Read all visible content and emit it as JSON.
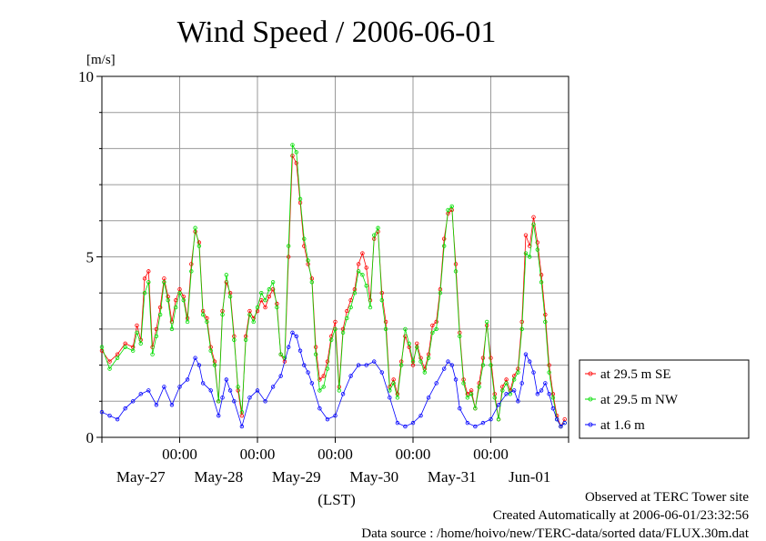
{
  "chart_data": {
    "type": "line",
    "title": "Wind Speed / 2006-06-01",
    "ylabel": "[m/s]",
    "xlabel": "(LST)",
    "ylim": [
      0,
      10
    ],
    "y_ticks": [
      0,
      5,
      10
    ],
    "x_range_days": [
      -6,
      0
    ],
    "x_time_ticks": [
      "00:00",
      "00:00",
      "00:00",
      "00:00",
      "00:00"
    ],
    "x_date_labels": [
      "May-27",
      "May-28",
      "May-29",
      "May-30",
      "May-31",
      "Jun-01"
    ],
    "grid": true,
    "legend_position": "right",
    "series": [
      {
        "name": "at 29.5 m SE",
        "color": "#ff0000",
        "points": [
          [
            -6.0,
            2.4
          ],
          [
            -5.9,
            2.1
          ],
          [
            -5.8,
            2.3
          ],
          [
            -5.7,
            2.6
          ],
          [
            -5.6,
            2.5
          ],
          [
            -5.55,
            3.1
          ],
          [
            -5.5,
            2.7
          ],
          [
            -5.45,
            4.4
          ],
          [
            -5.4,
            4.6
          ],
          [
            -5.35,
            2.5
          ],
          [
            -5.3,
            3.0
          ],
          [
            -5.25,
            3.6
          ],
          [
            -5.2,
            4.4
          ],
          [
            -5.15,
            3.9
          ],
          [
            -5.1,
            3.2
          ],
          [
            -5.05,
            3.8
          ],
          [
            -5.0,
            4.1
          ],
          [
            -4.95,
            3.9
          ],
          [
            -4.9,
            3.3
          ],
          [
            -4.85,
            4.8
          ],
          [
            -4.8,
            5.7
          ],
          [
            -4.75,
            5.4
          ],
          [
            -4.7,
            3.5
          ],
          [
            -4.65,
            3.3
          ],
          [
            -4.6,
            2.5
          ],
          [
            -4.55,
            2.1
          ],
          [
            -4.5,
            1.0
          ],
          [
            -4.45,
            3.5
          ],
          [
            -4.4,
            4.3
          ],
          [
            -4.35,
            4.0
          ],
          [
            -4.3,
            2.8
          ],
          [
            -4.25,
            1.3
          ],
          [
            -4.2,
            0.6
          ],
          [
            -4.15,
            2.8
          ],
          [
            -4.1,
            3.5
          ],
          [
            -4.05,
            3.3
          ],
          [
            -4.0,
            3.5
          ],
          [
            -3.95,
            3.8
          ],
          [
            -3.9,
            3.6
          ],
          [
            -3.85,
            3.9
          ],
          [
            -3.8,
            4.1
          ],
          [
            -3.75,
            3.7
          ],
          [
            -3.7,
            2.3
          ],
          [
            -3.65,
            2.1
          ],
          [
            -3.6,
            5.0
          ],
          [
            -3.55,
            7.8
          ],
          [
            -3.5,
            7.6
          ],
          [
            -3.45,
            6.5
          ],
          [
            -3.4,
            5.3
          ],
          [
            -3.35,
            4.8
          ],
          [
            -3.3,
            4.4
          ],
          [
            -3.25,
            2.5
          ],
          [
            -3.2,
            1.6
          ],
          [
            -3.15,
            1.7
          ],
          [
            -3.1,
            2.1
          ],
          [
            -3.05,
            2.8
          ],
          [
            -3.0,
            3.2
          ],
          [
            -2.95,
            1.4
          ],
          [
            -2.9,
            3.0
          ],
          [
            -2.85,
            3.5
          ],
          [
            -2.8,
            3.8
          ],
          [
            -2.75,
            4.1
          ],
          [
            -2.7,
            4.8
          ],
          [
            -2.65,
            5.1
          ],
          [
            -2.6,
            4.7
          ],
          [
            -2.55,
            3.8
          ],
          [
            -2.5,
            5.5
          ],
          [
            -2.45,
            5.7
          ],
          [
            -2.4,
            4.0
          ],
          [
            -2.35,
            3.2
          ],
          [
            -2.3,
            1.4
          ],
          [
            -2.25,
            1.6
          ],
          [
            -2.2,
            1.2
          ],
          [
            -2.15,
            2.1
          ],
          [
            -2.1,
            2.8
          ],
          [
            -2.05,
            2.5
          ],
          [
            -2.0,
            2.0
          ],
          [
            -1.95,
            2.6
          ],
          [
            -1.9,
            2.2
          ],
          [
            -1.85,
            1.9
          ],
          [
            -1.8,
            2.3
          ],
          [
            -1.75,
            3.1
          ],
          [
            -1.7,
            3.2
          ],
          [
            -1.65,
            4.1
          ],
          [
            -1.6,
            5.5
          ],
          [
            -1.55,
            6.2
          ],
          [
            -1.5,
            6.3
          ],
          [
            -1.45,
            4.8
          ],
          [
            -1.4,
            2.9
          ],
          [
            -1.35,
            1.6
          ],
          [
            -1.3,
            1.2
          ],
          [
            -1.25,
            1.3
          ],
          [
            -1.2,
            0.8
          ],
          [
            -1.15,
            1.5
          ],
          [
            -1.1,
            2.2
          ],
          [
            -1.05,
            3.1
          ],
          [
            -1.0,
            2.2
          ],
          [
            -0.95,
            1.2
          ],
          [
            -0.9,
            0.5
          ],
          [
            -0.85,
            1.4
          ],
          [
            -0.8,
            1.6
          ],
          [
            -0.75,
            1.3
          ],
          [
            -0.7,
            1.7
          ],
          [
            -0.65,
            1.9
          ],
          [
            -0.6,
            3.2
          ],
          [
            -0.55,
            5.6
          ],
          [
            -0.5,
            5.3
          ],
          [
            -0.45,
            6.1
          ],
          [
            -0.4,
            5.4
          ],
          [
            -0.35,
            4.5
          ],
          [
            -0.3,
            3.4
          ],
          [
            -0.25,
            2.0
          ],
          [
            -0.2,
            1.2
          ],
          [
            -0.15,
            0.6
          ],
          [
            -0.1,
            0.3
          ],
          [
            -0.05,
            0.5
          ]
        ]
      },
      {
        "name": "at 29.5 m NW",
        "color": "#00dd00",
        "points": [
          [
            -6.0,
            2.5
          ],
          [
            -5.9,
            1.9
          ],
          [
            -5.8,
            2.2
          ],
          [
            -5.7,
            2.5
          ],
          [
            -5.6,
            2.4
          ],
          [
            -5.55,
            2.9
          ],
          [
            -5.5,
            2.6
          ],
          [
            -5.45,
            4.0
          ],
          [
            -5.4,
            4.3
          ],
          [
            -5.35,
            2.3
          ],
          [
            -5.3,
            2.8
          ],
          [
            -5.25,
            3.4
          ],
          [
            -5.2,
            4.3
          ],
          [
            -5.15,
            3.8
          ],
          [
            -5.1,
            3.0
          ],
          [
            -5.05,
            3.6
          ],
          [
            -5.0,
            4.0
          ],
          [
            -4.95,
            3.8
          ],
          [
            -4.9,
            3.2
          ],
          [
            -4.85,
            4.6
          ],
          [
            -4.8,
            5.8
          ],
          [
            -4.75,
            5.3
          ],
          [
            -4.7,
            3.4
          ],
          [
            -4.65,
            3.2
          ],
          [
            -4.6,
            2.4
          ],
          [
            -4.55,
            2.0
          ],
          [
            -4.5,
            1.0
          ],
          [
            -4.45,
            3.4
          ],
          [
            -4.4,
            4.5
          ],
          [
            -4.35,
            3.9
          ],
          [
            -4.3,
            2.7
          ],
          [
            -4.25,
            1.4
          ],
          [
            -4.2,
            0.7
          ],
          [
            -4.15,
            2.7
          ],
          [
            -4.1,
            3.4
          ],
          [
            -4.05,
            3.2
          ],
          [
            -4.0,
            3.6
          ],
          [
            -3.95,
            4.0
          ],
          [
            -3.9,
            3.8
          ],
          [
            -3.85,
            4.1
          ],
          [
            -3.8,
            4.3
          ],
          [
            -3.75,
            3.6
          ],
          [
            -3.7,
            2.3
          ],
          [
            -3.65,
            2.2
          ],
          [
            -3.6,
            5.3
          ],
          [
            -3.55,
            8.1
          ],
          [
            -3.5,
            7.9
          ],
          [
            -3.45,
            6.6
          ],
          [
            -3.4,
            5.5
          ],
          [
            -3.35,
            4.9
          ],
          [
            -3.3,
            4.3
          ],
          [
            -3.25,
            2.3
          ],
          [
            -3.2,
            1.3
          ],
          [
            -3.15,
            1.4
          ],
          [
            -3.1,
            1.9
          ],
          [
            -3.05,
            2.7
          ],
          [
            -3.0,
            3.0
          ],
          [
            -2.95,
            1.3
          ],
          [
            -2.9,
            2.9
          ],
          [
            -2.85,
            3.3
          ],
          [
            -2.8,
            3.6
          ],
          [
            -2.75,
            4.0
          ],
          [
            -2.7,
            4.6
          ],
          [
            -2.65,
            4.5
          ],
          [
            -2.6,
            4.2
          ],
          [
            -2.55,
            3.6
          ],
          [
            -2.5,
            5.6
          ],
          [
            -2.45,
            5.8
          ],
          [
            -2.4,
            3.8
          ],
          [
            -2.35,
            3.0
          ],
          [
            -2.3,
            1.3
          ],
          [
            -2.25,
            1.5
          ],
          [
            -2.2,
            1.1
          ],
          [
            -2.15,
            2.0
          ],
          [
            -2.1,
            3.0
          ],
          [
            -2.05,
            2.6
          ],
          [
            -2.0,
            2.1
          ],
          [
            -1.95,
            2.5
          ],
          [
            -1.9,
            2.1
          ],
          [
            -1.85,
            1.8
          ],
          [
            -1.8,
            2.2
          ],
          [
            -1.75,
            2.9
          ],
          [
            -1.7,
            3.0
          ],
          [
            -1.65,
            4.0
          ],
          [
            -1.6,
            5.3
          ],
          [
            -1.55,
            6.3
          ],
          [
            -1.5,
            6.4
          ],
          [
            -1.45,
            4.6
          ],
          [
            -1.4,
            2.8
          ],
          [
            -1.35,
            1.5
          ],
          [
            -1.3,
            1.1
          ],
          [
            -1.25,
            1.2
          ],
          [
            -1.2,
            0.8
          ],
          [
            -1.15,
            1.4
          ],
          [
            -1.1,
            2.0
          ],
          [
            -1.05,
            3.2
          ],
          [
            -1.0,
            2.0
          ],
          [
            -0.95,
            1.1
          ],
          [
            -0.9,
            0.5
          ],
          [
            -0.85,
            1.3
          ],
          [
            -0.8,
            1.5
          ],
          [
            -0.75,
            1.2
          ],
          [
            -0.7,
            1.6
          ],
          [
            -0.65,
            1.8
          ],
          [
            -0.6,
            3.0
          ],
          [
            -0.55,
            5.1
          ],
          [
            -0.5,
            5.0
          ],
          [
            -0.45,
            5.9
          ],
          [
            -0.4,
            5.2
          ],
          [
            -0.35,
            4.3
          ],
          [
            -0.3,
            3.2
          ],
          [
            -0.25,
            1.8
          ],
          [
            -0.2,
            1.1
          ],
          [
            -0.15,
            0.5
          ],
          [
            -0.1,
            0.3
          ],
          [
            -0.05,
            0.4
          ]
        ]
      },
      {
        "name": "at 1.6 m",
        "color": "#0000ff",
        "points": [
          [
            -6.0,
            0.7
          ],
          [
            -5.9,
            0.6
          ],
          [
            -5.8,
            0.5
          ],
          [
            -5.7,
            0.8
          ],
          [
            -5.6,
            1.0
          ],
          [
            -5.5,
            1.2
          ],
          [
            -5.4,
            1.3
          ],
          [
            -5.3,
            0.9
          ],
          [
            -5.2,
            1.4
          ],
          [
            -5.1,
            0.9
          ],
          [
            -5.0,
            1.4
          ],
          [
            -4.9,
            1.6
          ],
          [
            -4.8,
            2.2
          ],
          [
            -4.75,
            2.0
          ],
          [
            -4.7,
            1.5
          ],
          [
            -4.6,
            1.3
          ],
          [
            -4.5,
            0.6
          ],
          [
            -4.45,
            1.1
          ],
          [
            -4.4,
            1.6
          ],
          [
            -4.35,
            1.3
          ],
          [
            -4.3,
            1.0
          ],
          [
            -4.2,
            0.3
          ],
          [
            -4.1,
            1.1
          ],
          [
            -4.0,
            1.3
          ],
          [
            -3.9,
            1.0
          ],
          [
            -3.8,
            1.4
          ],
          [
            -3.7,
            1.7
          ],
          [
            -3.6,
            2.5
          ],
          [
            -3.55,
            2.9
          ],
          [
            -3.5,
            2.8
          ],
          [
            -3.45,
            2.4
          ],
          [
            -3.4,
            2.0
          ],
          [
            -3.35,
            1.8
          ],
          [
            -3.3,
            1.5
          ],
          [
            -3.2,
            0.8
          ],
          [
            -3.1,
            0.5
          ],
          [
            -3.0,
            0.6
          ],
          [
            -2.9,
            1.2
          ],
          [
            -2.8,
            1.7
          ],
          [
            -2.7,
            2.0
          ],
          [
            -2.6,
            2.0
          ],
          [
            -2.5,
            2.1
          ],
          [
            -2.4,
            1.8
          ],
          [
            -2.3,
            1.1
          ],
          [
            -2.2,
            0.4
          ],
          [
            -2.1,
            0.3
          ],
          [
            -2.0,
            0.4
          ],
          [
            -1.9,
            0.6
          ],
          [
            -1.8,
            1.1
          ],
          [
            -1.7,
            1.5
          ],
          [
            -1.6,
            1.9
          ],
          [
            -1.55,
            2.1
          ],
          [
            -1.5,
            2.0
          ],
          [
            -1.45,
            1.6
          ],
          [
            -1.4,
            0.8
          ],
          [
            -1.3,
            0.4
          ],
          [
            -1.2,
            0.3
          ],
          [
            -1.1,
            0.4
          ],
          [
            -1.0,
            0.5
          ],
          [
            -0.9,
            0.9
          ],
          [
            -0.8,
            1.2
          ],
          [
            -0.7,
            1.3
          ],
          [
            -0.65,
            1.0
          ],
          [
            -0.6,
            1.5
          ],
          [
            -0.55,
            2.3
          ],
          [
            -0.5,
            2.1
          ],
          [
            -0.45,
            1.8
          ],
          [
            -0.4,
            1.2
          ],
          [
            -0.35,
            1.3
          ],
          [
            -0.3,
            1.5
          ],
          [
            -0.25,
            1.2
          ],
          [
            -0.2,
            0.8
          ],
          [
            -0.15,
            0.5
          ],
          [
            -0.1,
            0.3
          ],
          [
            -0.05,
            0.4
          ]
        ]
      }
    ]
  },
  "footer": {
    "line1": "Observed at TERC Tower site",
    "line2": "Created Automatically at 2006-06-01/23:32:56",
    "line3": "Data source : /home/hoivo/new/TERC-data/sorted  data/FLUX.30m.dat"
  }
}
